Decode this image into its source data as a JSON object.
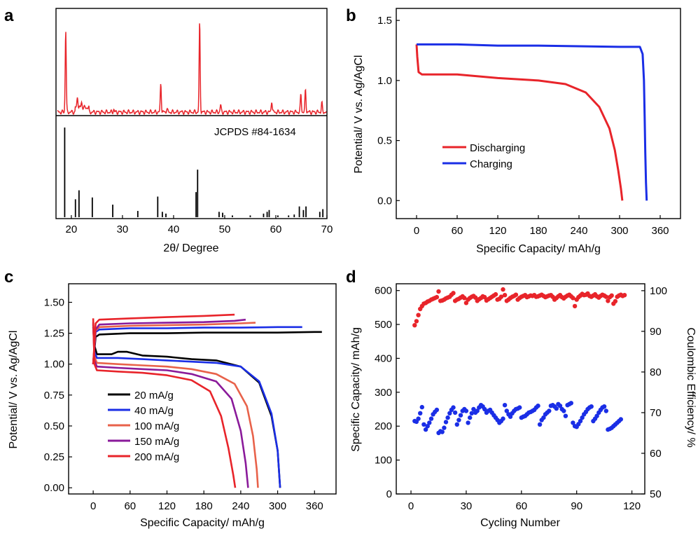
{
  "chart_data": [
    {
      "panel": "a",
      "type": "line",
      "xlabel": "2θ/ Degree",
      "ylabel": "",
      "xlim": [
        17,
        70
      ],
      "xticks": [
        20,
        30,
        40,
        50,
        60,
        70
      ],
      "color": "#e8242a",
      "annotation": "JCPDS #84-1634",
      "pattern_peaks": [
        {
          "x": 18.9,
          "h": 0.92
        },
        {
          "x": 21.2,
          "h": 0.12
        },
        {
          "x": 22.0,
          "h": 0.06
        },
        {
          "x": 28.3,
          "h": 0.03
        },
        {
          "x": 37.5,
          "h": 0.32
        },
        {
          "x": 38.7,
          "h": 0.04
        },
        {
          "x": 45.1,
          "h": 1.0
        },
        {
          "x": 49.2,
          "h": 0.08
        },
        {
          "x": 59.2,
          "h": 0.13
        },
        {
          "x": 64.9,
          "h": 0.2
        },
        {
          "x": 65.8,
          "h": 0.25
        },
        {
          "x": 69.0,
          "h": 0.1
        }
      ],
      "reference_lines": [
        {
          "x": 18.7,
          "h": 1.0
        },
        {
          "x": 20.8,
          "h": 0.2
        },
        {
          "x": 21.5,
          "h": 0.3
        },
        {
          "x": 24.1,
          "h": 0.22
        },
        {
          "x": 28.1,
          "h": 0.14
        },
        {
          "x": 33.0,
          "h": 0.07
        },
        {
          "x": 36.9,
          "h": 0.23
        },
        {
          "x": 37.8,
          "h": 0.06
        },
        {
          "x": 38.5,
          "h": 0.04
        },
        {
          "x": 44.4,
          "h": 0.28
        },
        {
          "x": 44.7,
          "h": 0.53
        },
        {
          "x": 48.9,
          "h": 0.06
        },
        {
          "x": 49.6,
          "h": 0.05
        },
        {
          "x": 51.5,
          "h": 0.02
        },
        {
          "x": 55.0,
          "h": 0.02
        },
        {
          "x": 57.6,
          "h": 0.04
        },
        {
          "x": 58.3,
          "h": 0.06
        },
        {
          "x": 58.7,
          "h": 0.08
        },
        {
          "x": 60.4,
          "h": 0.02
        },
        {
          "x": 62.5,
          "h": 0.02
        },
        {
          "x": 63.6,
          "h": 0.03
        },
        {
          "x": 64.6,
          "h": 0.12
        },
        {
          "x": 65.4,
          "h": 0.08
        },
        {
          "x": 65.9,
          "h": 0.12
        },
        {
          "x": 68.6,
          "h": 0.06
        },
        {
          "x": 69.2,
          "h": 0.09
        }
      ]
    },
    {
      "panel": "b",
      "type": "line",
      "xlabel": "Specific Capacity/ mAh/g",
      "ylabel": "Potential/ V vs. Ag/AgCl",
      "xlim": [
        -30,
        390
      ],
      "ylim": [
        -0.15,
        1.6
      ],
      "xticks": [
        0,
        60,
        120,
        180,
        240,
        300,
        360
      ],
      "yticks": [
        0.0,
        0.5,
        1.0,
        1.5
      ],
      "ytick_labels": [
        "0.0",
        "0.5",
        "1.0",
        "1.5"
      ],
      "legend_position": "center-left",
      "series": [
        {
          "name": "Discharging",
          "color": "#e8242a",
          "x": [
            0,
            1,
            3,
            8,
            30,
            60,
            120,
            180,
            220,
            250,
            270,
            285,
            293,
            298,
            302,
            304
          ],
          "y": [
            1.3,
            1.2,
            1.07,
            1.05,
            1.05,
            1.05,
            1.02,
            1.0,
            0.97,
            0.9,
            0.78,
            0.6,
            0.42,
            0.25,
            0.1,
            0.0
          ]
        },
        {
          "name": "Charging",
          "color": "#1a2ee6",
          "x": [
            0,
            60,
            120,
            180,
            240,
            300,
            330,
            334,
            336,
            337,
            338,
            339,
            340
          ],
          "y": [
            1.3,
            1.3,
            1.29,
            1.29,
            1.285,
            1.28,
            1.28,
            1.22,
            1.0,
            0.7,
            0.4,
            0.15,
            0.0
          ]
        }
      ]
    },
    {
      "panel": "c",
      "type": "line",
      "xlabel": "Specific Capacity/ mAh/g",
      "ylabel": "Potential/ V vs. Ag/AgCl",
      "xlim": [
        -40,
        395
      ],
      "ylim": [
        -0.05,
        1.65
      ],
      "xticks": [
        0,
        60,
        120,
        180,
        240,
        300,
        360
      ],
      "yticks": [
        0.0,
        0.25,
        0.5,
        0.75,
        1.0,
        1.25,
        1.5
      ],
      "ytick_labels": [
        "0.00",
        "0.25",
        "0.50",
        "0.75",
        "1.00",
        "1.25",
        "1.50"
      ],
      "legend_position": "bottom-left",
      "series": [
        {
          "name": "20 mA/g",
          "color": "#000000",
          "discharge": {
            "x": [
              0,
              2,
              6,
              15,
              30,
              40,
              55,
              80,
              120,
              160,
              200,
              240,
              270,
              290,
              300,
              304
            ],
            "y": [
              1.3,
              1.15,
              1.08,
              1.08,
              1.08,
              1.1,
              1.1,
              1.07,
              1.06,
              1.04,
              1.03,
              0.98,
              0.85,
              0.58,
              0.3,
              0.0
            ]
          },
          "charge": {
            "x": [
              0,
              4,
              10,
              60,
              120,
              180,
              240,
              300,
              360,
              372
            ],
            "y": [
              1.0,
              1.22,
              1.24,
              1.25,
              1.25,
              1.255,
              1.255,
              1.255,
              1.26,
              1.26
            ]
          }
        },
        {
          "name": "40 mA/g",
          "color": "#1a2ee6",
          "discharge": {
            "x": [
              0,
              2,
              6,
              40,
              80,
              120,
              160,
              200,
              240,
              270,
              290,
              300,
              304
            ],
            "y": [
              1.32,
              1.1,
              1.05,
              1.05,
              1.04,
              1.03,
              1.02,
              1.01,
              0.98,
              0.86,
              0.6,
              0.3,
              0.0
            ]
          },
          "charge": {
            "x": [
              0,
              4,
              10,
              60,
              120,
              180,
              240,
              300,
              340
            ],
            "y": [
              1.0,
              1.26,
              1.28,
              1.29,
              1.29,
              1.295,
              1.295,
              1.3,
              1.3
            ]
          }
        },
        {
          "name": "100 mA/g",
          "color": "#e8624a",
          "discharge": {
            "x": [
              0,
              2,
              6,
              40,
              80,
              120,
              160,
              200,
              230,
              250,
              260,
              266,
              268
            ],
            "y": [
              1.33,
              1.06,
              1.01,
              1.0,
              0.99,
              0.98,
              0.96,
              0.92,
              0.84,
              0.66,
              0.42,
              0.15,
              0.0
            ]
          },
          "charge": {
            "x": [
              0,
              4,
              10,
              60,
              120,
              180,
              240,
              264
            ],
            "y": [
              1.0,
              1.27,
              1.3,
              1.31,
              1.315,
              1.32,
              1.33,
              1.335
            ]
          }
        },
        {
          "name": "150 mA/g",
          "color": "#8a1a9a",
          "discharge": {
            "x": [
              0,
              2,
              6,
              40,
              80,
              120,
              160,
              200,
              225,
              240,
              248,
              252
            ],
            "y": [
              1.34,
              1.03,
              0.98,
              0.97,
              0.96,
              0.95,
              0.92,
              0.86,
              0.72,
              0.46,
              0.2,
              0.0
            ]
          },
          "charge": {
            "x": [
              0,
              4,
              10,
              60,
              120,
              180,
              230,
              248
            ],
            "y": [
              1.0,
              1.28,
              1.32,
              1.33,
              1.335,
              1.34,
              1.35,
              1.36
            ]
          }
        },
        {
          "name": "200 mA/g",
          "color": "#e8242a",
          "discharge": {
            "x": [
              0,
              2,
              6,
              40,
              80,
              120,
              160,
              190,
              208,
              220,
              228,
              231
            ],
            "y": [
              1.37,
              1.0,
              0.95,
              0.94,
              0.93,
              0.91,
              0.87,
              0.78,
              0.58,
              0.32,
              0.1,
              0.0
            ]
          },
          "charge": {
            "x": [
              0,
              4,
              10,
              60,
              120,
              180,
              230
            ],
            "y": [
              1.0,
              1.33,
              1.36,
              1.37,
              1.38,
              1.39,
              1.4
            ]
          }
        }
      ]
    },
    {
      "panel": "d",
      "type": "scatter",
      "xlabel": "Cycling Number",
      "ylabel": "Specific Capacity/ mAh/g",
      "y2label": "Coulombic Efficiency/ %",
      "xlim": [
        -8,
        127
      ],
      "ylim": [
        0,
        620
      ],
      "y2lim": [
        50,
        101.7
      ],
      "xticks": [
        0,
        30,
        60,
        90,
        120
      ],
      "yticks": [
        0,
        100,
        200,
        300,
        400,
        500,
        600
      ],
      "y2ticks": [
        50,
        60,
        70,
        80,
        90,
        100
      ],
      "series": [
        {
          "name": "Specific Capacity",
          "axis": "left",
          "color": "#1a2ee6",
          "x_start": 2,
          "x_step": 1,
          "values": [
            215,
            213,
            222,
            238,
            256,
            205,
            190,
            200,
            210,
            222,
            235,
            242,
            248,
            180,
            185,
            183,
            195,
            212,
            225,
            238,
            248,
            255,
            240,
            205,
            218,
            232,
            245,
            250,
            245,
            210,
            225,
            238,
            250,
            240,
            245,
            255,
            262,
            258,
            250,
            240,
            245,
            248,
            240,
            232,
            225,
            218,
            210,
            215,
            222,
            262,
            245,
            235,
            228,
            238,
            245,
            250,
            252,
            255,
            225,
            228,
            230,
            235,
            240,
            242,
            245,
            248,
            255,
            260,
            205,
            218,
            225,
            235,
            240,
            245,
            260,
            262,
            258,
            252,
            265,
            260,
            250,
            245,
            230,
            262,
            265,
            268,
            210,
            200,
            198,
            206,
            215,
            225,
            235,
            242,
            250,
            255,
            258,
            215,
            222,
            230,
            240,
            248,
            255,
            258,
            245,
            190,
            192,
            195,
            200,
            205,
            210,
            215,
            220
          ]
        },
        {
          "name": "Coulombic Efficiency",
          "axis": "right",
          "color": "#e8242a",
          "x_start": 2,
          "x_step": 1,
          "values": [
            91.5,
            92.5,
            94,
            95.5,
            96.2,
            96.8,
            97.0,
            97.3,
            97.5,
            97.8,
            98.0,
            98.2,
            98.4,
            99.8,
            97.5,
            97.6,
            97.8,
            98.1,
            98.3,
            98.5,
            99.0,
            99.4,
            97.5,
            97.8,
            98.0,
            98.3,
            98.6,
            98.2,
            97.0,
            97.8,
            98.2,
            98.5,
            98.7,
            98.3,
            97.5,
            97.9,
            98.2,
            98.6,
            98.4,
            97.6,
            97.9,
            98.2,
            98.5,
            98.8,
            99.1,
            97.8,
            98.0,
            98.5,
            100.3,
            98.9,
            97.5,
            97.8,
            98.2,
            98.5,
            98.7,
            99.0,
            97.8,
            98.2,
            98.5,
            98.7,
            98.9,
            98.4,
            98.6,
            98.8,
            98.7,
            98.9,
            98.5,
            98.6,
            98.8,
            99.0,
            98.7,
            98.4,
            98.6,
            98.8,
            98.9,
            98.5,
            97.8,
            98.2,
            98.6,
            98.9,
            98.4,
            98.1,
            98.5,
            98.8,
            99.0,
            98.6,
            98.2,
            96.2,
            97.8,
            98.4,
            98.8,
            99.2,
            98.9,
            99.0,
            99.3,
            98.7,
            98.5,
            98.8,
            99.1,
            98.6,
            98.3,
            98.7,
            99.0,
            98.8,
            98.5,
            97.5,
            98.4,
            98.8,
            96.8,
            97.4,
            98.5,
            98.8,
            99.0,
            98.7,
            98.9
          ]
        }
      ]
    }
  ]
}
